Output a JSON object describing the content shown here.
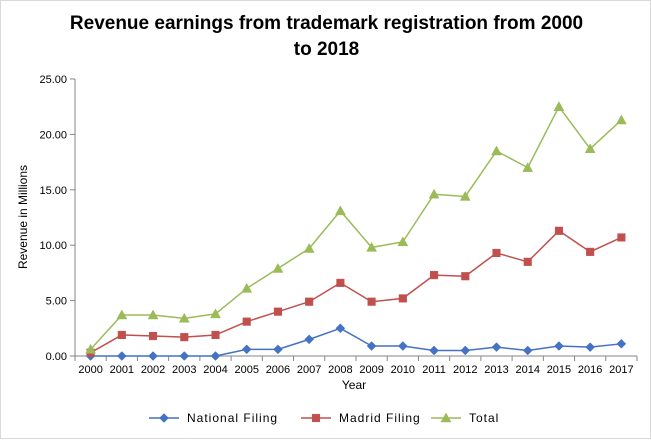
{
  "chart_data": {
    "type": "line",
    "title_lines": [
      "Revenue earnings from trademark registration from 2000",
      "to 2018"
    ],
    "xlabel": "Year",
    "ylabel": "Revenue in Millions",
    "x": [
      "2000",
      "2001",
      "2002",
      "2003",
      "2004",
      "2005",
      "2006",
      "2007",
      "2008",
      "2009",
      "2010",
      "2011",
      "2012",
      "2013",
      "2014",
      "2015",
      "2016",
      "2017"
    ],
    "y_ticks": [
      "0.00",
      "5.00",
      "10.00",
      "15.00",
      "20.00",
      "25.00"
    ],
    "ylim": [
      0,
      25
    ],
    "grid": false,
    "legend_position": "bottom",
    "series": [
      {
        "name": "National Filing",
        "color": "#4472c4",
        "marker": "diamond",
        "values": [
          0.0,
          0.0,
          0.0,
          0.0,
          0.0,
          0.6,
          0.6,
          1.5,
          2.5,
          0.9,
          0.9,
          0.5,
          0.5,
          0.8,
          0.5,
          0.9,
          0.8,
          1.1
        ]
      },
      {
        "name": "Madrid Filing",
        "color": "#c0504d",
        "marker": "square",
        "values": [
          0.3,
          1.9,
          1.8,
          1.7,
          1.9,
          3.1,
          4.0,
          4.9,
          6.6,
          4.9,
          5.2,
          7.3,
          7.2,
          9.3,
          8.5,
          11.3,
          9.4,
          10.7
        ]
      },
      {
        "name": "Total",
        "color": "#9bbb59",
        "marker": "triangle",
        "values": [
          0.6,
          3.7,
          3.7,
          3.4,
          3.8,
          6.1,
          7.9,
          9.7,
          13.1,
          9.8,
          10.3,
          14.6,
          14.4,
          18.5,
          17.0,
          22.5,
          18.7,
          21.3
        ]
      }
    ]
  }
}
